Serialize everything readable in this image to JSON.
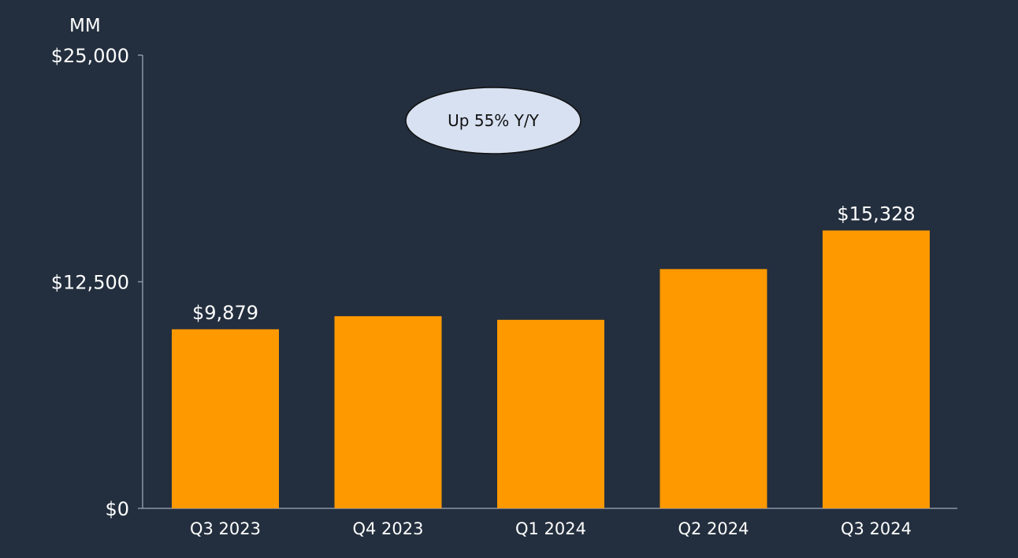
{
  "chart_data": {
    "type": "bar",
    "unit_label": "MM",
    "categories": [
      "Q3 2023",
      "Q4 2023",
      "Q1 2024",
      "Q2 2024",
      "Q3 2024"
    ],
    "values": [
      9879,
      10600,
      10400,
      13200,
      15328
    ],
    "data_labels": [
      "$9,879",
      "",
      "",
      "",
      "$15,328"
    ],
    "ylim": [
      0,
      25000
    ],
    "yticks": [
      0,
      12500,
      25000
    ],
    "ytick_labels": [
      "$0",
      "$12,500",
      "$25,000"
    ],
    "annotation": "Up 55% Y/Y",
    "grid": false,
    "colors": {
      "background": "#232f3e",
      "bar": "#ff9900",
      "axis": "#8a96a6",
      "badge_fill": "#d7e1f1",
      "text": "#ffffff"
    }
  }
}
